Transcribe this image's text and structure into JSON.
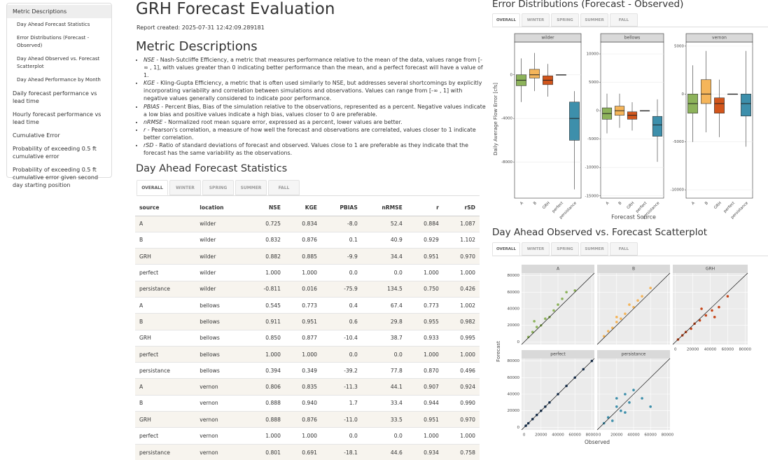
{
  "sidebar": {
    "items": [
      "Metric Descriptions",
      "Day Ahead Forecast Statistics",
      "Error Distributions (Forecast - Observed)",
      "Day Ahead Observed vs. Forecast Scatterplot",
      "Day Ahead Performance by Month",
      "Daily forecast performance vs lead time",
      "Hourly forecast performance vs lead time",
      "Cumulative Error",
      "Probability of exceeding 0.5 ft cumulative error",
      "Probability of exceeding 0.5 ft cumulative error given second day starting position"
    ]
  },
  "header": {
    "title": "GRH Forecast Evaluation",
    "created": "Report created: 2025-07-31 12:42:09.289181"
  },
  "metrics": {
    "title": "Metric Descriptions",
    "items": [
      {
        "term": "NSE",
        "text": " - Nash-Sutcliffe Efficiency, a metric that measures performance relative to the mean of the data, values range from [-∞ , 1], with values greater than 0 indicating better performance than the mean, and a perfect forecast will have a value of 1."
      },
      {
        "term": "KGE",
        "text": " - Kling-Gupta Efficiency, a metric that is often used similarly to NSE, but addresses several shortcomings by explicitly incorporating variability and correlation between simulations and observations. Values can range from [-∞ , 1] with negative values generally considered to indicate poor performance."
      },
      {
        "term": "PBIAS",
        "text": " - Percent Bias, Bias of the simulation relative to the observations, represented as a percent. Negative values indicate a low bias and positive values indicate a high bias, values closer to 0 are preferable."
      },
      {
        "term": "nRMSE",
        "text": " - Normalized root mean square error, expressed as a percent, lower values are better."
      },
      {
        "term": "r",
        "text": " - Pearson's correlation, a measure of how well the forecast and observations are correlated, values closer to 1 indicate better correlation."
      },
      {
        "term": "rSD",
        "text": " - Ratio of standard deviations of forecast and observed. Values close to 1 are preferable as they indicate that the forecast has the same variability as the observations."
      }
    ]
  },
  "stats": {
    "title": "Day Ahead Forecast Statistics",
    "tabs": [
      "OVERALL",
      "WINTER",
      "SPRING",
      "SUMMER",
      "FALL"
    ],
    "table": {
      "columns": [
        "source",
        "location",
        "NSE",
        "KGE",
        "PBIAS",
        "nRMSE",
        "r",
        "rSD"
      ],
      "rows": [
        [
          "A",
          "wilder",
          "0.725",
          "0.834",
          "-8.0",
          "52.4",
          "0.884",
          "1.087"
        ],
        [
          "B",
          "wilder",
          "0.832",
          "0.876",
          "0.1",
          "40.9",
          "0.929",
          "1.102"
        ],
        [
          "GRH",
          "wilder",
          "0.882",
          "0.885",
          "-9.9",
          "34.4",
          "0.951",
          "0.970"
        ],
        [
          "perfect",
          "wilder",
          "1.000",
          "1.000",
          "0.0",
          "0.0",
          "1.000",
          "1.000"
        ],
        [
          "persistance",
          "wilder",
          "-0.811",
          "0.016",
          "-75.9",
          "134.5",
          "0.750",
          "0.426"
        ],
        [
          "A",
          "bellows",
          "0.545",
          "0.773",
          "0.4",
          "67.4",
          "0.773",
          "1.002"
        ],
        [
          "B",
          "bellows",
          "0.911",
          "0.951",
          "0.6",
          "29.8",
          "0.955",
          "0.982"
        ],
        [
          "GRH",
          "bellows",
          "0.850",
          "0.877",
          "-10.4",
          "38.7",
          "0.933",
          "0.995"
        ],
        [
          "perfect",
          "bellows",
          "1.000",
          "1.000",
          "0.0",
          "0.0",
          "1.000",
          "1.000"
        ],
        [
          "persistance",
          "bellows",
          "0.394",
          "0.349",
          "-39.2",
          "77.8",
          "0.870",
          "0.496"
        ],
        [
          "A",
          "vernon",
          "0.806",
          "0.835",
          "-11.3",
          "44.1",
          "0.907",
          "0.924"
        ],
        [
          "B",
          "vernon",
          "0.888",
          "0.940",
          "1.7",
          "33.4",
          "0.944",
          "0.990"
        ],
        [
          "GRH",
          "vernon",
          "0.888",
          "0.876",
          "-11.0",
          "33.5",
          "0.951",
          "0.970"
        ],
        [
          "perfect",
          "vernon",
          "1.000",
          "1.000",
          "0.0",
          "0.0",
          "1.000",
          "1.000"
        ],
        [
          "persistance",
          "vernon",
          "0.801",
          "0.691",
          "-18.1",
          "44.6",
          "0.934",
          "0.758"
        ]
      ]
    }
  },
  "error_tabs": [
    "OVERALL",
    "WINTER",
    "SPRING",
    "SUMMER",
    "FALL"
  ],
  "scatter_tabs": [
    "OVERALL",
    "WINTER",
    "SPRING",
    "SUMMER",
    "FALL"
  ],
  "chart_data": [
    {
      "type": "box",
      "title": "Error Distributions (Forecast - Observed)",
      "ylabel": "Daily Average Flow Error [cfs]",
      "xlabel": "Forecast Source",
      "categories": [
        "A",
        "B",
        "GRH",
        "perfect",
        "persistance"
      ],
      "colors": [
        "#8db35b",
        "#f5b55a",
        "#d2551b",
        "#cccccc",
        "#3d8fab"
      ],
      "panels": [
        {
          "name": "wilder",
          "ylim": [
            -11300,
            3000
          ],
          "yticks": [
            -8000,
            -4000,
            0
          ],
          "boxes": [
            {
              "low": -2500,
              "q1": -1000,
              "median": -500,
              "q3": 0,
              "high": 1500
            },
            {
              "low": -1500,
              "q1": -300,
              "median": 0,
              "q3": 500,
              "high": 2000
            },
            {
              "low": -2000,
              "q1": -900,
              "median": -500,
              "q3": -100,
              "high": 1000
            },
            {
              "low": 0,
              "q1": 0,
              "median": 0,
              "q3": 0,
              "high": 0
            },
            {
              "low": -10500,
              "q1": -6000,
              "median": -4000,
              "q3": -2500,
              "high": -1500
            }
          ]
        },
        {
          "name": "bellows",
          "ylim": [
            -15400,
            12100
          ],
          "yticks": [
            -15000,
            -10000,
            -5000,
            0,
            5000,
            10000
          ],
          "boxes": [
            {
              "low": -4000,
              "q1": -1500,
              "median": -500,
              "q3": 500,
              "high": 3000
            },
            {
              "low": -3000,
              "q1": -800,
              "median": 0,
              "q3": 800,
              "high": 3000
            },
            {
              "low": -3500,
              "q1": -1500,
              "median": -800,
              "q3": -200,
              "high": 1500
            },
            {
              "low": 0,
              "q1": 0,
              "median": 0,
              "q3": 0,
              "high": 0
            },
            {
              "low": -9000,
              "q1": -4500,
              "median": -2500,
              "q3": -1000,
              "high": 2000
            }
          ]
        },
        {
          "name": "vernon",
          "ylim": [
            -10870,
            5430
          ],
          "yticks": [
            -10000,
            -5000,
            0,
            5000
          ],
          "boxes": [
            {
              "low": -5000,
              "q1": -2000,
              "median": -1000,
              "q3": 0,
              "high": 3000
            },
            {
              "low": -4000,
              "q1": -1000,
              "median": 0,
              "q3": 1500,
              "high": 4500
            },
            {
              "low": -4500,
              "q1": -2000,
              "median": -1000,
              "q3": -400,
              "high": 1500
            },
            {
              "low": 0,
              "q1": 0,
              "median": 0,
              "q3": 0,
              "high": 0
            },
            {
              "low": -5500,
              "q1": -2300,
              "median": -1000,
              "q3": 0,
              "high": 4500
            }
          ]
        }
      ]
    },
    {
      "type": "scatter",
      "title": "Day Ahead Observed vs. Forecast Scatterplot",
      "xlabel": "Observed",
      "ylabel": "Forecast",
      "xlim": [
        -3000,
        83000
      ],
      "ylim": [
        -3000,
        83000
      ],
      "xticks": [
        0,
        20000,
        40000,
        60000,
        80000
      ],
      "yticks": [
        0,
        20000,
        40000,
        60000,
        80000
      ],
      "panels": [
        {
          "name": "A",
          "color": "#8db35b",
          "x": [
            5000,
            10000,
            15000,
            20000,
            25000,
            30000,
            35000,
            40000,
            50000,
            60000,
            45000,
            12000
          ],
          "y": [
            6000,
            12000,
            18000,
            20000,
            28000,
            30000,
            38000,
            45000,
            60000,
            62000,
            52000,
            25000
          ]
        },
        {
          "name": "B",
          "color": "#f5b55a",
          "x": [
            5000,
            10000,
            15000,
            20000,
            25000,
            30000,
            40000,
            45000,
            50000,
            60000,
            35000,
            20000
          ],
          "y": [
            7000,
            13000,
            17000,
            24000,
            28000,
            34000,
            42000,
            50000,
            55000,
            65000,
            45000,
            30000
          ]
        },
        {
          "name": "GRH",
          "color": "#c6461a",
          "x": [
            3000,
            8000,
            12000,
            18000,
            22000,
            28000,
            35000,
            42000,
            50000,
            60000,
            30000,
            45000
          ],
          "y": [
            3000,
            8000,
            12000,
            16000,
            22000,
            26000,
            32000,
            38000,
            42000,
            55000,
            40000,
            30000
          ]
        },
        {
          "name": "perfect",
          "color": "#1c3a5e",
          "x": [
            2000,
            5000,
            10000,
            15000,
            20000,
            25000,
            30000,
            40000,
            50000,
            60000,
            70000,
            80000
          ],
          "y": [
            2000,
            5000,
            10000,
            15000,
            20000,
            25000,
            30000,
            40000,
            50000,
            60000,
            70000,
            80000
          ]
        },
        {
          "name": "persistance",
          "color": "#3d8fab",
          "x": [
            5000,
            10000,
            15000,
            20000,
            25000,
            30000,
            35000,
            40000,
            50000,
            60000,
            20000,
            30000
          ],
          "y": [
            5000,
            12000,
            8000,
            25000,
            20000,
            18000,
            30000,
            45000,
            35000,
            25000,
            35000,
            40000
          ]
        }
      ]
    }
  ]
}
